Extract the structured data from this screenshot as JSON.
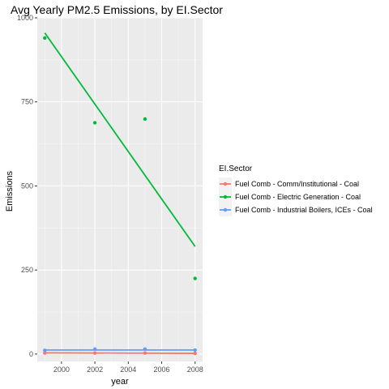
{
  "chart_data": {
    "type": "scatter",
    "title": "Avg Yearly PM2.5 Emissions, by EI.Sector",
    "xlabel": "year",
    "ylabel": "Emissions",
    "xlim": [
      1998.55,
      2008.45
    ],
    "ylim": [
      -22,
      1000
    ],
    "xticks": [
      2000,
      2002,
      2004,
      2006,
      2008
    ],
    "xtick_labels": [
      "2000",
      "2002",
      "2004",
      "2006",
      "2008"
    ],
    "yticks": [
      0,
      250,
      500,
      750,
      1000
    ],
    "ytick_labels": [
      "0",
      "250",
      "500",
      "750",
      "1000"
    ],
    "grid": true,
    "legend_title": "EI.Sector",
    "legend_position": "right",
    "series": [
      {
        "name": "Fuel Comb - Comm/Institutional - Coal",
        "color": "#F8766D",
        "x": [
          1999,
          2002,
          2005,
          2008
        ],
        "y": [
          3,
          3,
          3,
          2
        ],
        "trend": [
          [
            1999,
            3.5
          ],
          [
            2008,
            2
          ]
        ]
      },
      {
        "name": "Fuel Comb - Electric Generation - Coal",
        "color": "#00BA38",
        "x": [
          1999,
          2002,
          2005,
          2008
        ],
        "y": [
          940,
          688,
          699,
          225
        ],
        "trend": [
          [
            1999,
            955
          ],
          [
            2008,
            320
          ]
        ]
      },
      {
        "name": "Fuel Comb - Industrial Boilers, ICEs - Coal",
        "color": "#619CFF",
        "x": [
          1999,
          2002,
          2005,
          2008
        ],
        "y": [
          11,
          15,
          15,
          12
        ],
        "trend": [
          [
            1999,
            12
          ],
          [
            2008,
            12
          ]
        ]
      }
    ]
  }
}
